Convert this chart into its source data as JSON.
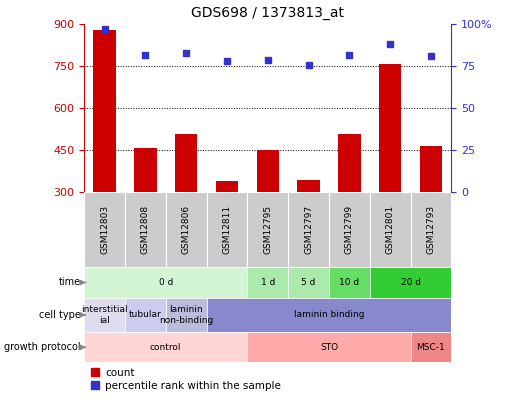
{
  "title": "GDS698 / 1373813_at",
  "samples": [
    "GSM12803",
    "GSM12808",
    "GSM12806",
    "GSM12811",
    "GSM12795",
    "GSM12797",
    "GSM12799",
    "GSM12801",
    "GSM12793"
  ],
  "counts": [
    880,
    460,
    510,
    340,
    450,
    345,
    510,
    760,
    465
  ],
  "percentiles": [
    97,
    82,
    83,
    78,
    79,
    76,
    82,
    88,
    81
  ],
  "ylim_left": [
    300,
    900
  ],
  "ylim_right": [
    0,
    100
  ],
  "yticks_left": [
    300,
    450,
    600,
    750,
    900
  ],
  "yticks_right": [
    0,
    25,
    50,
    75,
    100
  ],
  "bar_color": "#cc0000",
  "dot_color": "#3333cc",
  "bar_base": 300,
  "time_groups": [
    {
      "label": "0 d",
      "start": 0,
      "end": 4,
      "color": "#d4f5d4"
    },
    {
      "label": "1 d",
      "start": 4,
      "end": 5,
      "color": "#aaeaaa"
    },
    {
      "label": "5 d",
      "start": 5,
      "end": 6,
      "color": "#aaeaaa"
    },
    {
      "label": "10 d",
      "start": 6,
      "end": 7,
      "color": "#66dd66"
    },
    {
      "label": "20 d",
      "start": 7,
      "end": 9,
      "color": "#33cc33"
    }
  ],
  "cell_type_groups": [
    {
      "label": "interstitial\nial",
      "start": 0,
      "end": 1,
      "color": "#ddddee"
    },
    {
      "label": "tubular",
      "start": 1,
      "end": 2,
      "color": "#ccccee"
    },
    {
      "label": "laminin\nnon-binding",
      "start": 2,
      "end": 3,
      "color": "#bbbbdd"
    },
    {
      "label": "laminin binding",
      "start": 3,
      "end": 9,
      "color": "#8888cc"
    }
  ],
  "growth_protocol_groups": [
    {
      "label": "control",
      "start": 0,
      "end": 4,
      "color": "#ffd5d5"
    },
    {
      "label": "STO",
      "start": 4,
      "end": 8,
      "color": "#ffaaaa"
    },
    {
      "label": "MSC-1",
      "start": 8,
      "end": 9,
      "color": "#ee8888"
    }
  ],
  "sample_box_color": "#cccccc",
  "row_labels": [
    "time",
    "cell type",
    "growth protocol"
  ],
  "legend_items": [
    {
      "label": "count",
      "color": "#cc0000"
    },
    {
      "label": "percentile rank within the sample",
      "color": "#3333cc"
    }
  ],
  "axis_left_color": "#cc0000",
  "axis_right_color": "#3333cc",
  "grid_dotted_values": [
    450,
    600,
    750
  ]
}
